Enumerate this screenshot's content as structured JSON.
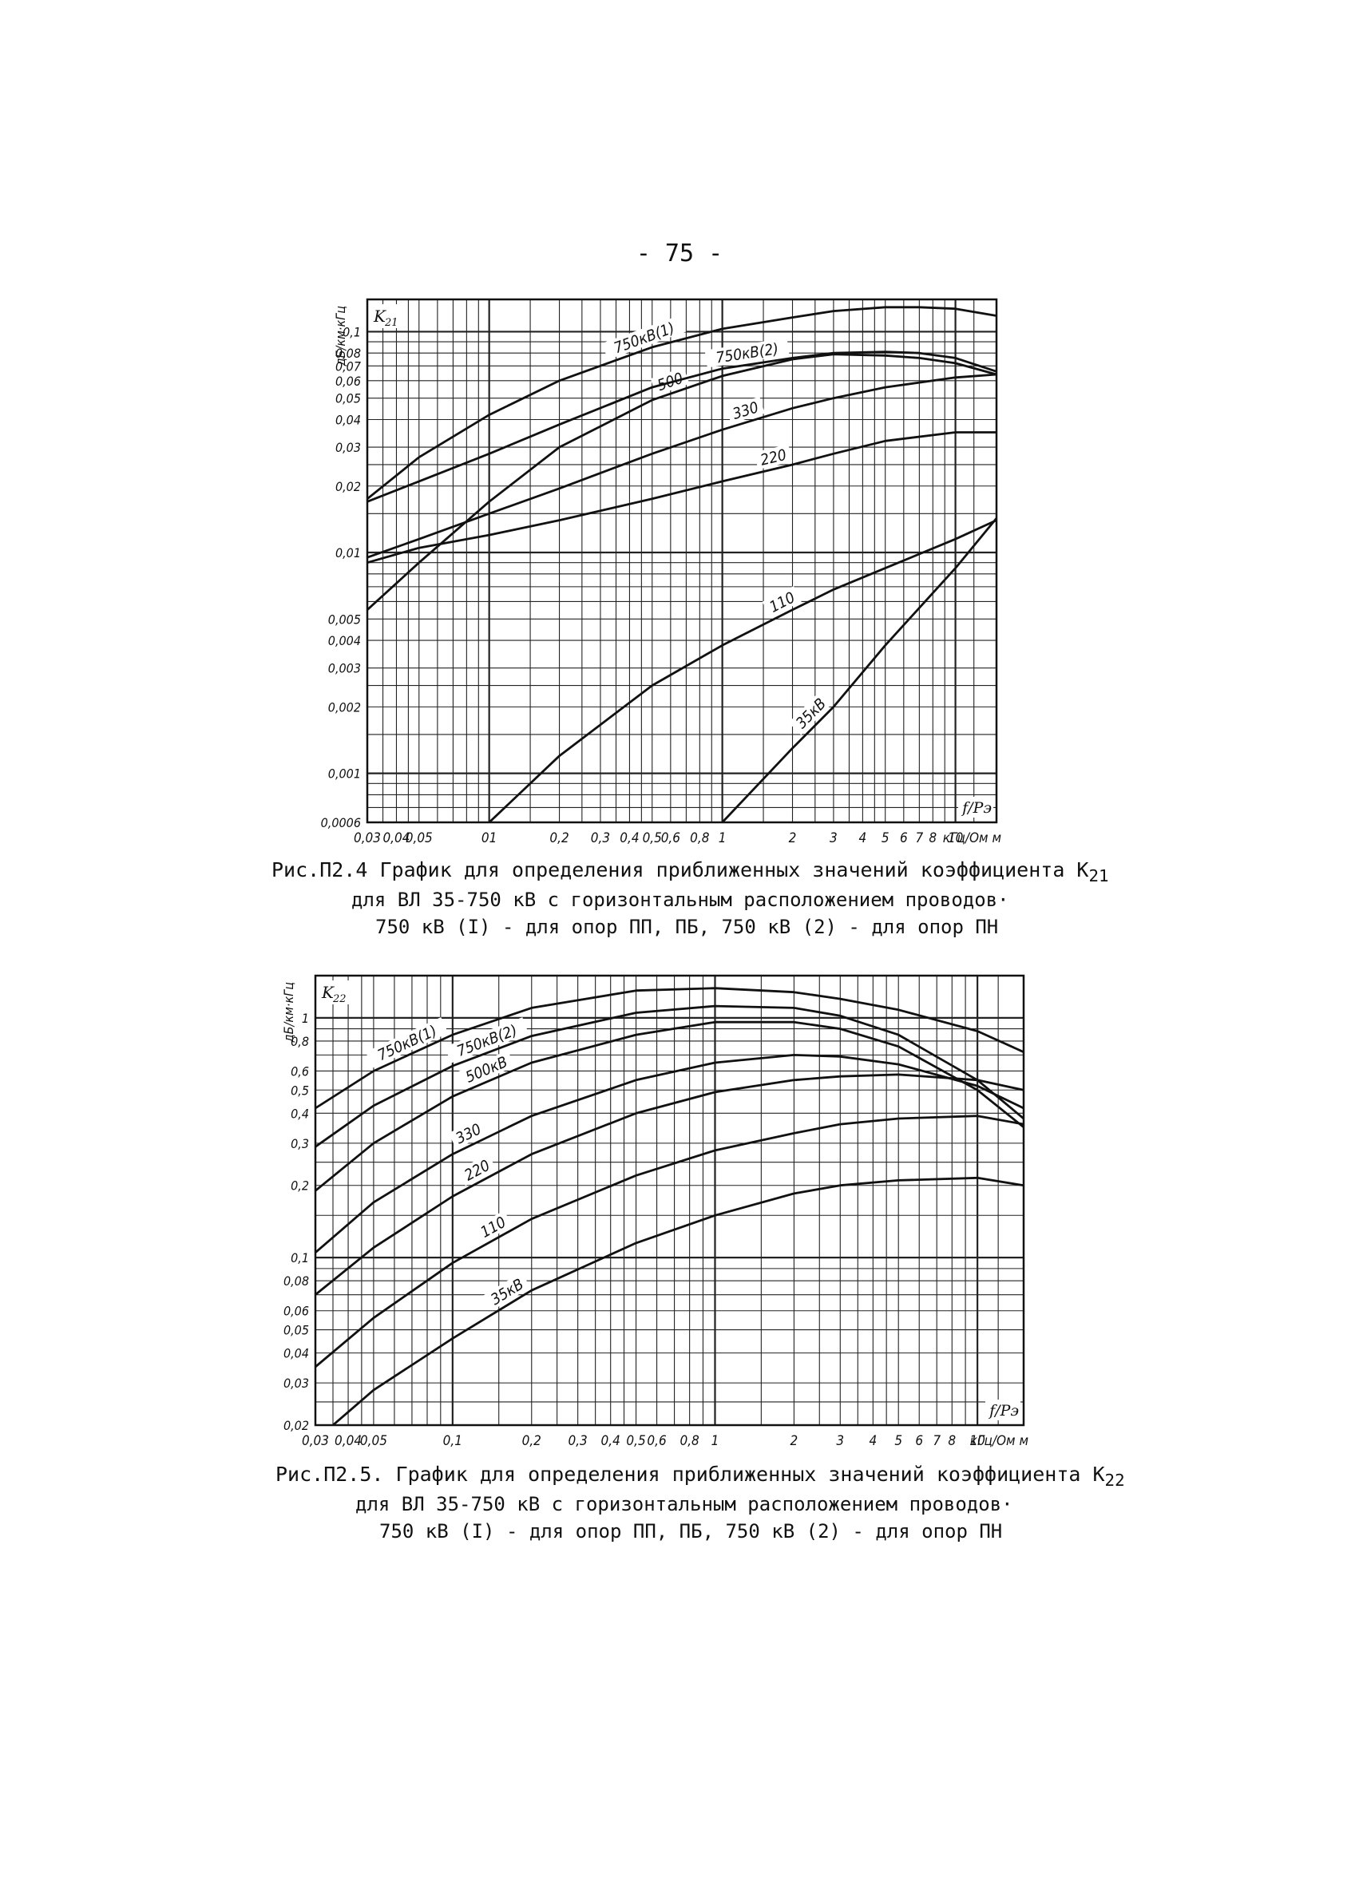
{
  "page": {
    "number": "- 75 -"
  },
  "chart_data": [
    {
      "type": "line",
      "xscale": "log",
      "yscale": "log",
      "xlim": [
        0.03,
        15
      ],
      "ylim": [
        0.0006,
        0.14
      ],
      "grid": true,
      "ylabel": "дБ/км·кГц",
      "y_symbol": "K",
      "y_sub": "21",
      "corner_label": "f/Pэ",
      "x_unit": "кГц/Ом м",
      "x_ticks": [
        {
          "v": 0.03,
          "t": "0,03"
        },
        {
          "v": 0.04,
          "t": "0,04"
        },
        {
          "v": 0.05,
          "t": "0,05"
        },
        {
          "v": 0.1,
          "t": "01"
        },
        {
          "v": 0.2,
          "t": "0,2"
        },
        {
          "v": 0.3,
          "t": "0,3"
        },
        {
          "v": 0.4,
          "t": "0,4"
        },
        {
          "v": 0.5,
          "t": "0,5"
        },
        {
          "v": 0.6,
          "t": "0,6"
        },
        {
          "v": 0.8,
          "t": "0,8"
        },
        {
          "v": 1,
          "t": "1"
        },
        {
          "v": 2,
          "t": "2"
        },
        {
          "v": 3,
          "t": "3"
        },
        {
          "v": 4,
          "t": "4"
        },
        {
          "v": 5,
          "t": "5"
        },
        {
          "v": 6,
          "t": "6"
        },
        {
          "v": 7,
          "t": "7"
        },
        {
          "v": 8,
          "t": "8"
        },
        {
          "v": 10,
          "t": "10"
        }
      ],
      "y_ticks": [
        {
          "v": 0.1,
          "t": "0,1"
        },
        {
          "v": 0.08,
          "t": "0,08"
        },
        {
          "v": 0.07,
          "t": "0,07"
        },
        {
          "v": 0.06,
          "t": "0,06"
        },
        {
          "v": 0.05,
          "t": "0,05"
        },
        {
          "v": 0.04,
          "t": "0,04"
        },
        {
          "v": 0.03,
          "t": "0,03"
        },
        {
          "v": 0.02,
          "t": "0,02"
        },
        {
          "v": 0.01,
          "t": "0,01"
        },
        {
          "v": 0.005,
          "t": "0,005"
        },
        {
          "v": 0.004,
          "t": "0,004"
        },
        {
          "v": 0.003,
          "t": "0,003"
        },
        {
          "v": 0.002,
          "t": "0,002"
        },
        {
          "v": 0.001,
          "t": "0,001"
        },
        {
          "v": 0.0006,
          "t": "0,0006"
        }
      ],
      "series": [
        {
          "name": "750кВ(1)",
          "label_at": 0.48,
          "x": [
            0.03,
            0.05,
            0.1,
            0.2,
            0.5,
            1,
            2,
            3,
            5,
            7,
            10,
            15
          ],
          "y": [
            0.0175,
            0.027,
            0.042,
            0.06,
            0.085,
            0.103,
            0.116,
            0.124,
            0.129,
            0.129,
            0.127,
            0.118
          ]
        },
        {
          "name": "500",
          "label_at": 0.62,
          "x": [
            0.03,
            0.05,
            0.1,
            0.2,
            0.5,
            1,
            2,
            3,
            5,
            7,
            10,
            15
          ],
          "y": [
            0.0055,
            0.009,
            0.017,
            0.03,
            0.049,
            0.063,
            0.075,
            0.079,
            0.078,
            0.076,
            0.072,
            0.064
          ]
        },
        {
          "name": "750кВ(2)",
          "label_at": 1.3,
          "x": [
            0.03,
            0.05,
            0.1,
            0.2,
            0.5,
            1,
            2,
            3,
            5,
            7,
            10,
            15
          ],
          "y": [
            0.017,
            0.021,
            0.028,
            0.038,
            0.056,
            0.068,
            0.076,
            0.08,
            0.081,
            0.08,
            0.076,
            0.066
          ]
        },
        {
          "name": "330",
          "label_at": 1.3,
          "x": [
            0.03,
            0.05,
            0.1,
            0.2,
            0.5,
            1,
            2,
            3,
            5,
            10,
            15
          ],
          "y": [
            0.0095,
            0.0115,
            0.015,
            0.0195,
            0.028,
            0.036,
            0.045,
            0.05,
            0.056,
            0.062,
            0.064
          ]
        },
        {
          "name": "220",
          "label_at": 1.7,
          "x": [
            0.03,
            0.05,
            0.1,
            0.2,
            0.5,
            1,
            2,
            3,
            5,
            10,
            15
          ],
          "y": [
            0.009,
            0.0105,
            0.012,
            0.014,
            0.0175,
            0.021,
            0.025,
            0.028,
            0.032,
            0.035,
            0.035
          ]
        },
        {
          "name": "110",
          "label_at": 1.9,
          "x": [
            0.1,
            0.2,
            0.5,
            1,
            2,
            3,
            5,
            10,
            15
          ],
          "y": [
            0.0006,
            0.0012,
            0.0025,
            0.0038,
            0.0055,
            0.0068,
            0.0085,
            0.0115,
            0.014
          ]
        },
        {
          "name": "35кВ",
          "label_at": 2.6,
          "x": [
            1,
            2,
            3,
            5,
            10,
            15
          ],
          "y": [
            0.0006,
            0.0013,
            0.002,
            0.0038,
            0.0085,
            0.0143
          ]
        }
      ]
    },
    {
      "type": "line",
      "xscale": "log",
      "yscale": "log",
      "xlim": [
        0.03,
        15
      ],
      "ylim": [
        0.02,
        1.5
      ],
      "grid": true,
      "ylabel": "дБ/км·кГц",
      "y_symbol": "K",
      "y_sub": "22",
      "corner_label": "f/Pэ",
      "x_unit": "кГц/Ом м",
      "x_ticks": [
        {
          "v": 0.03,
          "t": "0,03"
        },
        {
          "v": 0.04,
          "t": "0,04"
        },
        {
          "v": 0.05,
          "t": "0,05"
        },
        {
          "v": 0.1,
          "t": "0,1"
        },
        {
          "v": 0.2,
          "t": "0,2"
        },
        {
          "v": 0.3,
          "t": "0,3"
        },
        {
          "v": 0.4,
          "t": "0,4"
        },
        {
          "v": 0.5,
          "t": "0,5"
        },
        {
          "v": 0.6,
          "t": "0,6"
        },
        {
          "v": 0.8,
          "t": "0,8"
        },
        {
          "v": 1,
          "t": "1"
        },
        {
          "v": 2,
          "t": "2"
        },
        {
          "v": 3,
          "t": "3"
        },
        {
          "v": 4,
          "t": "4"
        },
        {
          "v": 5,
          "t": "5"
        },
        {
          "v": 6,
          "t": "6"
        },
        {
          "v": 7,
          "t": "7"
        },
        {
          "v": 8,
          "t": "8"
        },
        {
          "v": 10,
          "t": "10"
        }
      ],
      "y_ticks": [
        {
          "v": 1,
          "t": "1"
        },
        {
          "v": 0.8,
          "t": "0,8"
        },
        {
          "v": 0.6,
          "t": "0,6"
        },
        {
          "v": 0.5,
          "t": "0,5"
        },
        {
          "v": 0.4,
          "t": "0,4"
        },
        {
          "v": 0.3,
          "t": "0,3"
        },
        {
          "v": 0.2,
          "t": "0,2"
        },
        {
          "v": 0.1,
          "t": "0,1"
        },
        {
          "v": 0.08,
          "t": "0,08"
        },
        {
          "v": 0.06,
          "t": "0,06"
        },
        {
          "v": 0.05,
          "t": "0,05"
        },
        {
          "v": 0.04,
          "t": "0,04"
        },
        {
          "v": 0.03,
          "t": "0,03"
        },
        {
          "v": 0.02,
          "t": "0,02"
        }
      ],
      "series": [
        {
          "name": "750кВ(1)",
          "label_at": 0.07,
          "x": [
            0.03,
            0.05,
            0.1,
            0.2,
            0.5,
            1,
            2,
            3,
            5,
            10,
            15
          ],
          "y": [
            0.42,
            0.6,
            0.85,
            1.1,
            1.3,
            1.33,
            1.28,
            1.2,
            1.08,
            0.88,
            0.72
          ]
        },
        {
          "name": "750кВ(2)",
          "label_at": 0.14,
          "x": [
            0.03,
            0.05,
            0.1,
            0.2,
            0.5,
            1,
            2,
            3,
            5,
            10,
            15
          ],
          "y": [
            0.29,
            0.43,
            0.63,
            0.84,
            1.05,
            1.12,
            1.1,
            1.02,
            0.85,
            0.55,
            0.38
          ]
        },
        {
          "name": "500кВ",
          "label_at": 0.14,
          "x": [
            0.03,
            0.05,
            0.1,
            0.2,
            0.5,
            1,
            2,
            3,
            5,
            10,
            15
          ],
          "y": [
            0.19,
            0.3,
            0.47,
            0.65,
            0.85,
            0.96,
            0.96,
            0.9,
            0.76,
            0.5,
            0.35
          ]
        },
        {
          "name": "330",
          "label_at": 0.12,
          "x": [
            0.03,
            0.05,
            0.1,
            0.2,
            0.5,
            1,
            2,
            3,
            5,
            10,
            15
          ],
          "y": [
            0.105,
            0.17,
            0.27,
            0.39,
            0.55,
            0.65,
            0.7,
            0.69,
            0.64,
            0.52,
            0.42
          ]
        },
        {
          "name": "220",
          "label_at": 0.13,
          "x": [
            0.03,
            0.05,
            0.1,
            0.2,
            0.5,
            1,
            2,
            3,
            5,
            10,
            15
          ],
          "y": [
            0.07,
            0.11,
            0.18,
            0.27,
            0.4,
            0.49,
            0.55,
            0.57,
            0.58,
            0.55,
            0.5
          ]
        },
        {
          "name": "110",
          "label_at": 0.15,
          "x": [
            0.03,
            0.05,
            0.1,
            0.2,
            0.5,
            1,
            2,
            3,
            5,
            10,
            15
          ],
          "y": [
            0.035,
            0.056,
            0.095,
            0.145,
            0.22,
            0.28,
            0.33,
            0.36,
            0.38,
            0.39,
            0.36
          ]
        },
        {
          "name": "35кВ",
          "label_at": 0.17,
          "x": [
            0.035,
            0.05,
            0.1,
            0.2,
            0.5,
            1,
            2,
            3,
            5,
            10,
            15
          ],
          "y": [
            0.02,
            0.028,
            0.046,
            0.073,
            0.115,
            0.15,
            0.185,
            0.2,
            0.21,
            0.215,
            0.2
          ]
        }
      ]
    }
  ],
  "captions": [
    {
      "line1": "Рис.П2.4  График для определения приближенных значений коэффициента K",
      "line1_sub": "21",
      "line2": "для ВЛ 35-750 кВ с горизонтальным расположением проводов·",
      "line3": "750 кВ (I) - для опор ПП, ПБ, 750 кВ (2) - для опор ПН"
    },
    {
      "line1": "Рис.П2.5. График для определения приближенных значений коэффициента K",
      "line1_sub": "22",
      "line2": "для ВЛ 35-750 кВ с горизонтальным расположением проводов·",
      "line3": "750 кВ (I) - для опор ПП, ПБ, 750 кВ (2) - для опор ПН"
    }
  ]
}
